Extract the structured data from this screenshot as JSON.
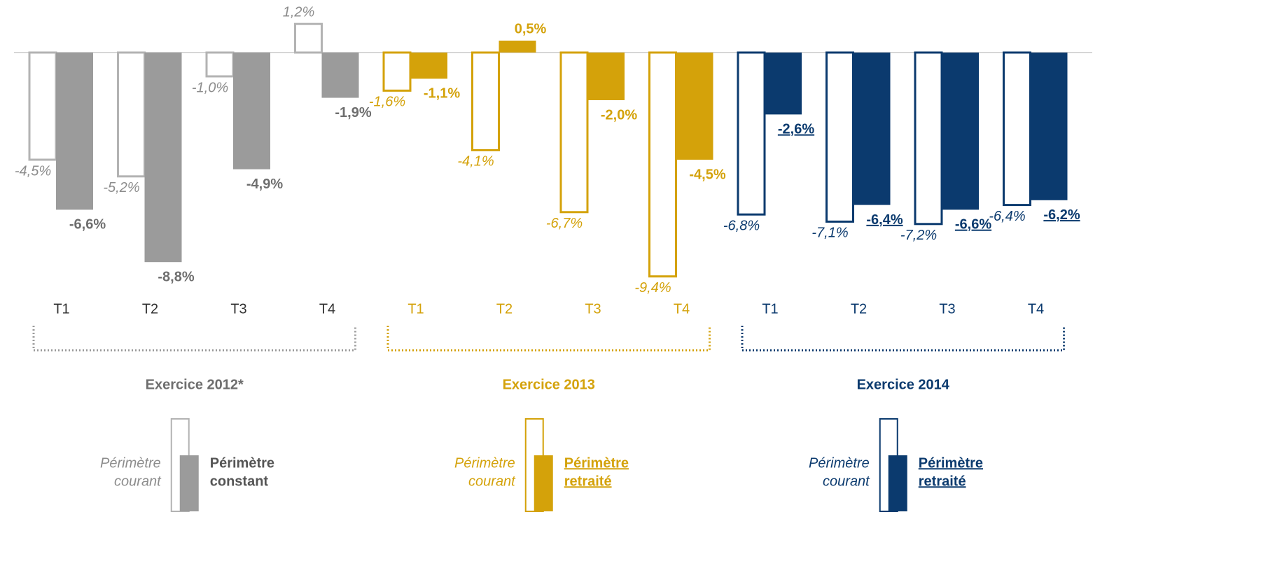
{
  "chart_data": {
    "type": "bar",
    "ylim": [
      -10,
      1.5
    ],
    "periods": [
      {
        "title": "Exercice 2012*",
        "color": "#9b9b9b",
        "outline_color": "#b3b3b3",
        "text_color": "#6e6e6e",
        "categories": [
          "T1",
          "T2",
          "T3",
          "T4"
        ],
        "series": [
          {
            "name": [
              "Périmètre",
              "courant"
            ],
            "style": "outline",
            "values": [
              -4.5,
              -5.2,
              -1.0,
              1.2
            ],
            "value_labels": [
              "-4,5%",
              "-5,2%",
              "-1,0%",
              "1,2%"
            ]
          },
          {
            "name": [
              "Périmètre",
              "constant"
            ],
            "style": "filled",
            "values": [
              -6.6,
              -8.8,
              -4.9,
              -1.9
            ],
            "value_labels": [
              "-6,6%",
              "-8,8%",
              "-4,9%",
              "-1,9%"
            ]
          }
        ]
      },
      {
        "title": "Exercice 2013",
        "color": "#d4a20a",
        "outline_color": "#d4a20a",
        "text_color": "#d4a20a",
        "categories": [
          "T1",
          "T2",
          "T3",
          "T4"
        ],
        "series": [
          {
            "name": [
              "Périmètre",
              "courant"
            ],
            "style": "outline",
            "values": [
              -1.6,
              -4.1,
              -6.7,
              -9.4
            ],
            "value_labels": [
              "-1,6%",
              "-4,1%",
              "-6,7%",
              "-9,4%"
            ]
          },
          {
            "name": [
              "Périmètre",
              "retraité"
            ],
            "style": "filled",
            "underline_legend": true,
            "values": [
              -1.1,
              0.5,
              -2.0,
              -4.5
            ],
            "value_labels": [
              "-1,1%",
              "0,5%",
              "-2,0%",
              "-4,5%"
            ]
          }
        ]
      },
      {
        "title": "Exercice 2014",
        "color": "#0b3a6e",
        "outline_color": "#0b3a6e",
        "text_color": "#0b3a6e",
        "categories": [
          "T1",
          "T2",
          "T3",
          "T4"
        ],
        "series": [
          {
            "name": [
              "Périmètre",
              "courant"
            ],
            "style": "outline",
            "values": [
              -6.8,
              -7.1,
              -7.2,
              -6.4
            ],
            "value_labels": [
              "-6,8%",
              "-7,1%",
              "-7,2%",
              "-6,4%"
            ]
          },
          {
            "name": [
              "Périmètre",
              "retraité"
            ],
            "style": "filled",
            "underline_legend": true,
            "underline_labels": true,
            "values": [
              -2.6,
              -6.4,
              -6.6,
              -6.2
            ],
            "value_labels": [
              "-2,6%",
              "-6,4%",
              "-6,6%",
              "-6,2%"
            ]
          }
        ]
      }
    ]
  }
}
